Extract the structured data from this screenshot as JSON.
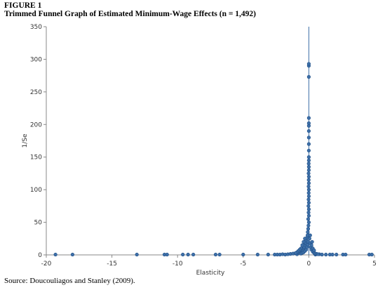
{
  "figure": {
    "label": "FIGURE 1",
    "title": "Trimmed Funnel Graph of Estimated Minimum-Wage Effects (n = 1,492)",
    "source": "Source: Doucouliagos and Stanley (2009)."
  },
  "chart_data": {
    "type": "scatter",
    "xlabel": "Elasticity",
    "ylabel": "1/Se",
    "xlim": [
      -20,
      5
    ],
    "ylim": [
      0,
      350
    ],
    "xticks": [
      -20,
      -15,
      -10,
      -5,
      0,
      5
    ],
    "yticks": [
      0,
      50,
      100,
      150,
      200,
      250,
      300,
      350
    ],
    "grid": false,
    "reference_line_x": 0,
    "marker_color": "#3d6fa8",
    "marker_edge_color": "#1f4e85",
    "series": [
      {
        "points": [
          [
            -19.3,
            0.5
          ],
          [
            -18.0,
            0.5
          ],
          [
            -13.1,
            0.5
          ],
          [
            -11.0,
            0.5
          ],
          [
            -10.8,
            0.5
          ],
          [
            -9.6,
            0.5
          ],
          [
            -9.2,
            0.5
          ],
          [
            -8.8,
            0.5
          ],
          [
            -7.1,
            0.5
          ],
          [
            -6.8,
            0.5
          ],
          [
            -5.0,
            0.5
          ],
          [
            -3.9,
            0.5
          ],
          [
            -3.1,
            0.5
          ],
          [
            -2.6,
            0.5
          ],
          [
            -2.4,
            0.5
          ],
          [
            -2.2,
            0.5
          ],
          [
            -2.0,
            1.0
          ],
          [
            -1.8,
            0.5
          ],
          [
            -1.6,
            1.0
          ],
          [
            -1.4,
            1.5
          ],
          [
            -1.2,
            2.0
          ],
          [
            -1.0,
            2.5
          ],
          [
            -0.9,
            1.0
          ],
          [
            -0.8,
            3.0
          ],
          [
            -0.7,
            4.0
          ],
          [
            -0.6,
            5.0
          ],
          [
            -0.5,
            6.0
          ],
          [
            -0.45,
            8.0
          ],
          [
            -0.4,
            10.0
          ],
          [
            -0.35,
            12.0
          ],
          [
            -0.3,
            15.0
          ],
          [
            -0.25,
            18.0
          ],
          [
            -0.2,
            22.0
          ],
          [
            -0.15,
            26.0
          ],
          [
            -0.1,
            30.0
          ],
          [
            -0.08,
            35.0
          ],
          [
            -0.05,
            40.0
          ],
          [
            -0.03,
            45.0
          ],
          [
            0.0,
            50.0
          ],
          [
            0.5,
            0.5
          ],
          [
            0.8,
            1.0
          ],
          [
            1.0,
            0.5
          ],
          [
            1.3,
            0.5
          ],
          [
            1.6,
            0.5
          ],
          [
            1.8,
            0.5
          ],
          [
            2.1,
            0.5
          ],
          [
            2.6,
            0.5
          ],
          [
            2.8,
            0.5
          ],
          [
            4.6,
            0.5
          ],
          [
            4.8,
            0.5
          ],
          [
            -0.6,
            2.0
          ],
          [
            -0.5,
            3.0
          ],
          [
            -0.4,
            4.0
          ],
          [
            -0.3,
            6.0
          ],
          [
            -0.2,
            8.0
          ],
          [
            -0.15,
            12.0
          ],
          [
            -0.1,
            16.0
          ],
          [
            -0.05,
            20.0
          ],
          [
            0.05,
            25.0
          ],
          [
            0.1,
            18.0
          ],
          [
            0.15,
            12.0
          ],
          [
            0.2,
            8.0
          ],
          [
            0.3,
            5.0
          ],
          [
            0.4,
            3.0
          ],
          [
            0.5,
            2.0
          ],
          [
            0.6,
            1.5
          ],
          [
            0.7,
            1.0
          ],
          [
            0.2,
            15.0
          ],
          [
            0.1,
            30.0
          ],
          [
            -0.3,
            25.0
          ],
          [
            -0.4,
            20.0
          ],
          [
            -0.5,
            15.0
          ],
          [
            -0.6,
            10.0
          ],
          [
            -0.7,
            8.0
          ],
          [
            -0.8,
            6.0
          ],
          [
            -0.9,
            4.0
          ],
          [
            -1.0,
            3.0
          ],
          [
            0.3,
            10.0
          ],
          [
            0.4,
            7.0
          ],
          [
            0.25,
            20.0
          ],
          [
            -0.05,
            55.0
          ],
          [
            0.0,
            60.0
          ],
          [
            -0.02,
            65.0
          ],
          [
            0.0,
            70.0
          ],
          [
            -0.03,
            75.0
          ],
          [
            0.0,
            80.0
          ],
          [
            -0.02,
            85.0
          ],
          [
            0.0,
            90.0
          ],
          [
            -0.01,
            95.0
          ],
          [
            0.0,
            100.0
          ],
          [
            -0.02,
            105.0
          ],
          [
            0.0,
            110.0
          ],
          [
            -0.01,
            115.0
          ],
          [
            0.0,
            120.0
          ],
          [
            -0.02,
            125.0
          ],
          [
            0.0,
            130.0
          ],
          [
            0.0,
            135.0
          ],
          [
            -0.01,
            140.0
          ],
          [
            0.0,
            145.0
          ],
          [
            0.0,
            150.0
          ],
          [
            0.0,
            160.0
          ],
          [
            0.0,
            170.0
          ],
          [
            0.0,
            180.0
          ],
          [
            0.0,
            190.0
          ],
          [
            0.0,
            198.0
          ],
          [
            0.0,
            202.0
          ],
          [
            0.0,
            210.0
          ],
          [
            0.0,
            273.0
          ],
          [
            0.0,
            290.0
          ],
          [
            0.0,
            293.0
          ]
        ]
      }
    ]
  }
}
